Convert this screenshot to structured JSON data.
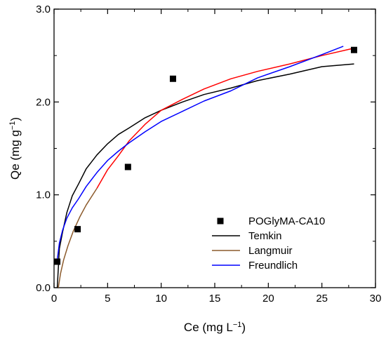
{
  "chart_data": {
    "type": "scatter",
    "xlabel": {
      "main": "Ce (mg L",
      "sup": "−1",
      "tail": ")"
    },
    "ylabel": {
      "main": "Qe (mg g",
      "sup": "−1",
      "tail": ")"
    },
    "xlim": [
      0,
      30
    ],
    "ylim": [
      0,
      3.0
    ],
    "x_ticks": [
      0,
      5,
      10,
      15,
      20,
      25,
      30
    ],
    "y_ticks": [
      0.0,
      1.0,
      2.0,
      3.0
    ],
    "x_tick_labels": [
      "0",
      "5",
      "10",
      "15",
      "20",
      "25",
      "30"
    ],
    "y_tick_labels": [
      "0.0",
      "1.0",
      "2.0",
      "3.0"
    ],
    "grid": false,
    "legend_position": "bottom-right",
    "series": [
      {
        "name": "POGlyMA-CA10",
        "kind": "points",
        "marker": "square",
        "color": "#000000",
        "x": [
          0.3,
          2.2,
          6.9,
          11.1,
          28.0
        ],
        "y": [
          0.28,
          0.63,
          1.3,
          2.25,
          2.56
        ]
      },
      {
        "name": "Temkin",
        "kind": "curve",
        "color": "#000000",
        "x": [
          0.3,
          0.5,
          0.8,
          1.2,
          1.7,
          2.3,
          3,
          4,
          5,
          6,
          7,
          8.5,
          10,
          12,
          14,
          16.5,
          19,
          22,
          25,
          28
        ],
        "y": [
          0.0,
          0.42,
          0.6,
          0.81,
          0.99,
          1.12,
          1.28,
          1.43,
          1.55,
          1.65,
          1.72,
          1.83,
          1.91,
          2.0,
          2.08,
          2.15,
          2.23,
          2.3,
          2.38,
          2.41
        ]
      },
      {
        "name": "Langmuir",
        "kind": "curve",
        "color": "#8B5A2B",
        "x": [
          0.4,
          0.6,
          0.9,
          1.3,
          1.8,
          2.4,
          3,
          4
        ],
        "y": [
          0.0,
          0.15,
          0.3,
          0.45,
          0.61,
          0.76,
          0.89,
          1.07
        ]
      },
      {
        "name": "",
        "kind": "curve",
        "color": "#ff0000",
        "x": [
          4,
          5,
          6,
          7,
          8.5,
          10,
          12,
          14,
          16.5,
          19,
          22,
          25,
          28
        ],
        "y": [
          1.07,
          1.27,
          1.42,
          1.58,
          1.76,
          1.91,
          2.03,
          2.14,
          2.25,
          2.33,
          2.41,
          2.5,
          2.58
        ]
      },
      {
        "name": "Freundlich",
        "kind": "curve",
        "color": "#0000ff",
        "x": [
          0.3,
          0.5,
          0.8,
          1.2,
          1.7,
          2.3,
          3,
          4,
          5,
          6,
          7,
          8.5,
          10,
          12,
          14,
          16.5,
          19,
          22,
          25,
          27
        ],
        "y": [
          0.3,
          0.48,
          0.62,
          0.75,
          0.86,
          0.96,
          1.09,
          1.24,
          1.37,
          1.47,
          1.56,
          1.68,
          1.79,
          1.9,
          2.01,
          2.12,
          2.26,
          2.38,
          2.51,
          2.6
        ]
      }
    ]
  },
  "legend": {
    "entries": [
      {
        "label": "POGlyMA-CA10",
        "kind": "marker",
        "color": "#000000"
      },
      {
        "label": "Temkin",
        "kind": "line",
        "color": "#000000"
      },
      {
        "label": "Langmuir",
        "kind": "line",
        "color": "#8B5A2B"
      },
      {
        "label": "Freundlich",
        "kind": "line",
        "color": "#0000ff"
      }
    ]
  }
}
